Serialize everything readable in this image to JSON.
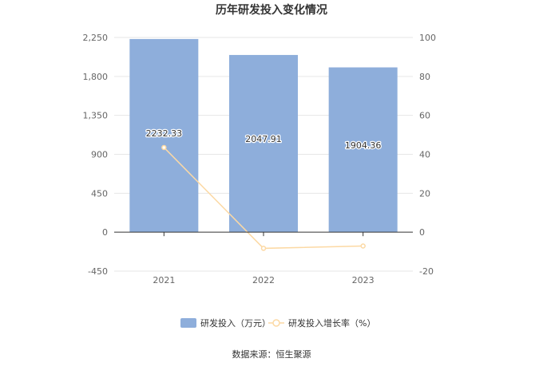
{
  "chart_data": {
    "type": "bar",
    "title": "历年研发投入变化情况",
    "categories": [
      "2021",
      "2022",
      "2023"
    ],
    "series": [
      {
        "name": "研发投入（万元）",
        "type": "bar",
        "axis": "left",
        "color": "#8eaedb",
        "values": [
          2232.33,
          2047.91,
          1904.36
        ],
        "data_labels": [
          "2232.33",
          "2047.91",
          "1904.36"
        ]
      },
      {
        "name": "研发投入增长率（%）",
        "type": "line",
        "axis": "right",
        "color": "#fcd9a4",
        "values": [
          43.5,
          -8.3,
          -7.1
        ]
      }
    ],
    "y_left": {
      "min": -450,
      "max": 2250,
      "ticks": [
        2250,
        1800,
        1350,
        900,
        450,
        0,
        -450
      ],
      "tick_labels": [
        "2,250",
        "1,800",
        "1,350",
        "900",
        "450",
        "0",
        "-450"
      ]
    },
    "y_right": {
      "min": -20,
      "max": 100,
      "ticks": [
        100,
        80,
        60,
        40,
        20,
        0,
        -20
      ],
      "tick_labels": [
        "100",
        "80",
        "60",
        "40",
        "20",
        "0",
        "-20"
      ]
    },
    "grid": true,
    "legend_position": "bottom"
  },
  "footer": {
    "source": "数据来源：恒生聚源"
  }
}
